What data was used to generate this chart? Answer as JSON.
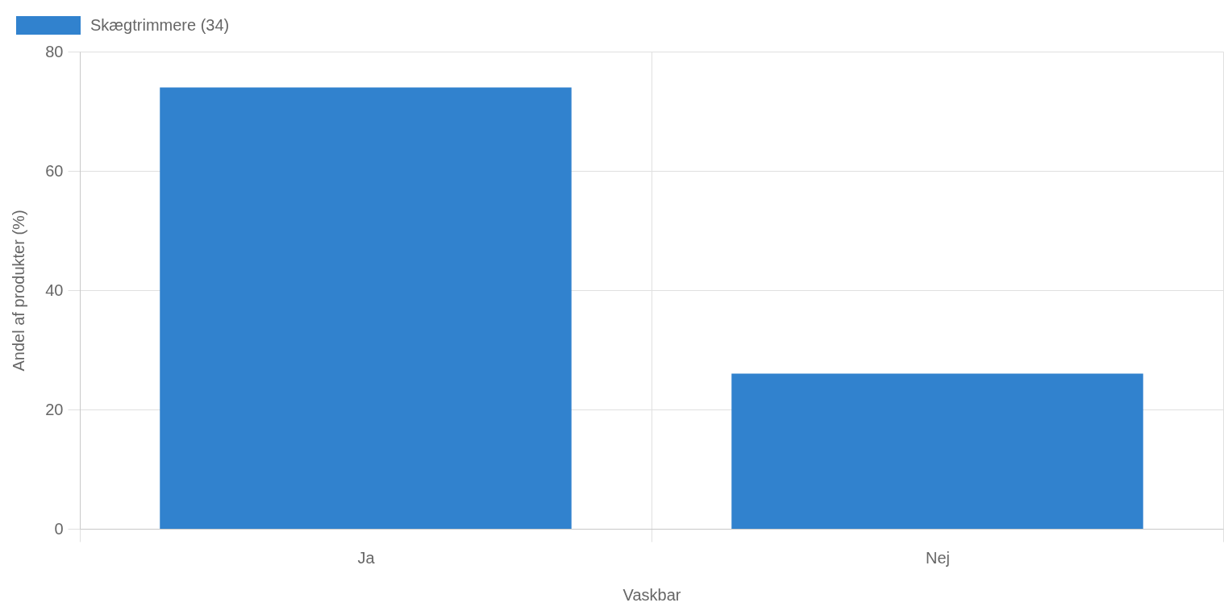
{
  "chart_data": {
    "type": "bar",
    "categories": [
      "Ja",
      "Nej"
    ],
    "series": [
      {
        "name": "Skægtrimmere (34)",
        "color": "#3182ce",
        "values": [
          74,
          26
        ]
      }
    ],
    "xlabel": "Vaskbar",
    "ylabel": "Andel af produkter (%)",
    "ylim": [
      0,
      80
    ],
    "yticks": [
      0,
      20,
      40,
      60,
      80
    ],
    "grid": true,
    "legend": "top left"
  }
}
